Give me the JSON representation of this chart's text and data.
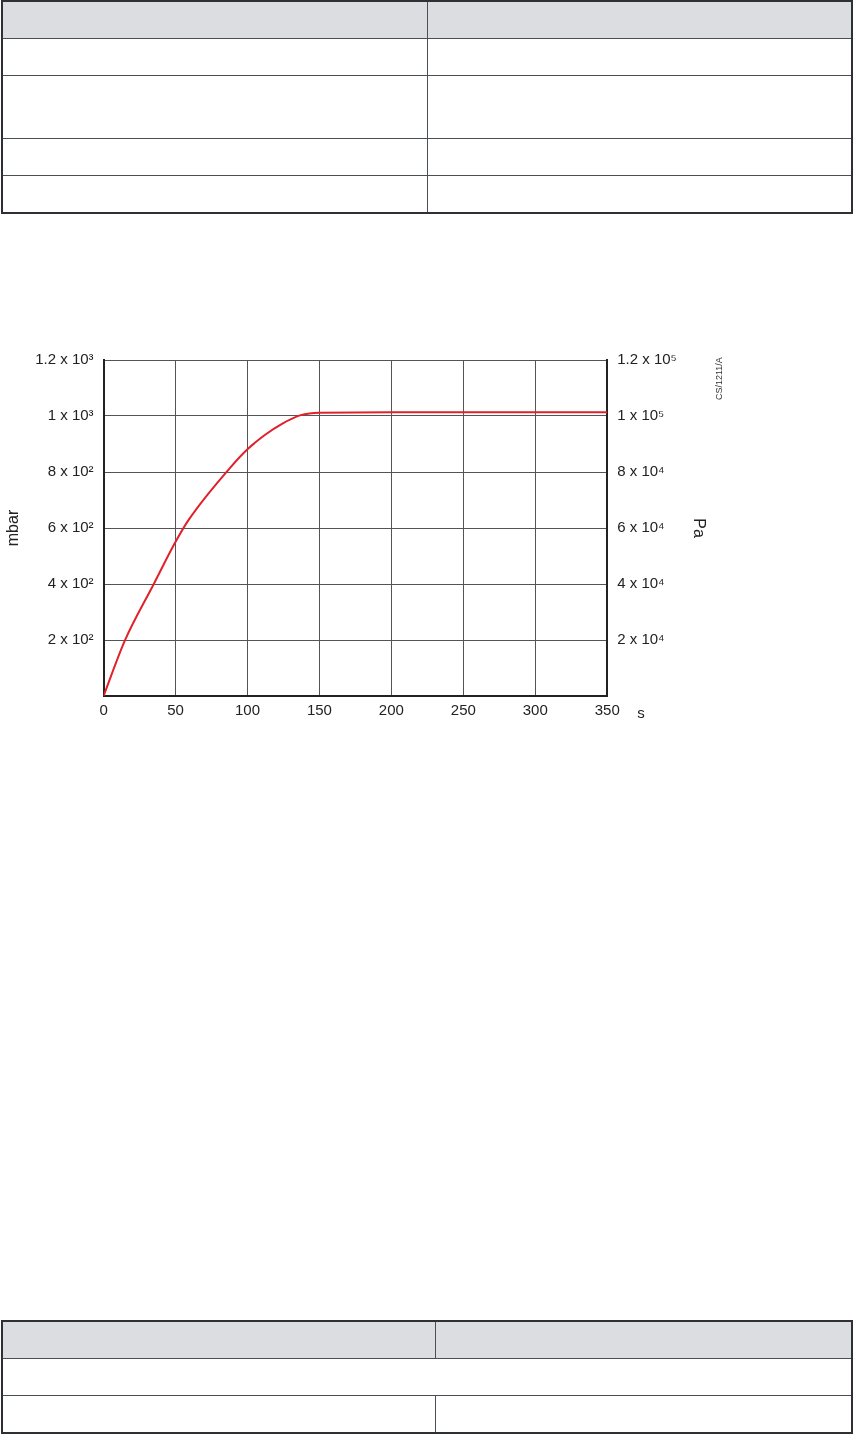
{
  "chart_data": {
    "type": "line",
    "xlabel": "s",
    "ylabel": "mbar",
    "y2label": "Pa",
    "x": [
      0,
      14.7,
      35,
      49,
      59,
      87.3,
      100,
      112.3,
      124,
      137,
      150,
      200,
      250,
      300,
      350
    ],
    "series": [
      {
        "color": "#e0202a",
        "values": [
          0,
          197,
          401,
          541,
          628,
          811,
          881,
          933,
          972,
          1003,
          1012,
          1013,
          1013,
          1013,
          1013
        ]
      }
    ],
    "xlim": [
      0,
      350
    ],
    "xticks": [
      0,
      50,
      100,
      150,
      200,
      250,
      300,
      350
    ],
    "ylim": [
      0,
      1200
    ],
    "yticks": [
      {
        "value": 0,
        "label": null
      },
      {
        "value": 200,
        "label": "2 x 10²"
      },
      {
        "value": 400,
        "label": "4 x 10²"
      },
      {
        "value": 600,
        "label": "6 x 10²"
      },
      {
        "value": 800,
        "label": "8 x 10²"
      },
      {
        "value": 1000,
        "label": "1 x 10³"
      },
      {
        "value": 1200,
        "label": "1.2 x 10³"
      }
    ],
    "y2lim": [
      0,
      120000
    ],
    "y2ticks": [
      {
        "value": 0,
        "label": null
      },
      {
        "value": 20000,
        "label": "2 x 10⁴"
      },
      {
        "value": 40000,
        "label": "4 x 10⁴"
      },
      {
        "value": 60000,
        "label": "6 x 10⁴"
      },
      {
        "value": 80000,
        "label": "8 x 10⁴"
      },
      {
        "value": 100000,
        "label": "1 x 10⁵"
      },
      {
        "value": 120000,
        "label": "1.2 x 10⁵"
      }
    ],
    "annotations": [
      "CS/1211/A"
    ],
    "grid": true,
    "legend": false,
    "marker": "none",
    "line_style": "solid"
  }
}
